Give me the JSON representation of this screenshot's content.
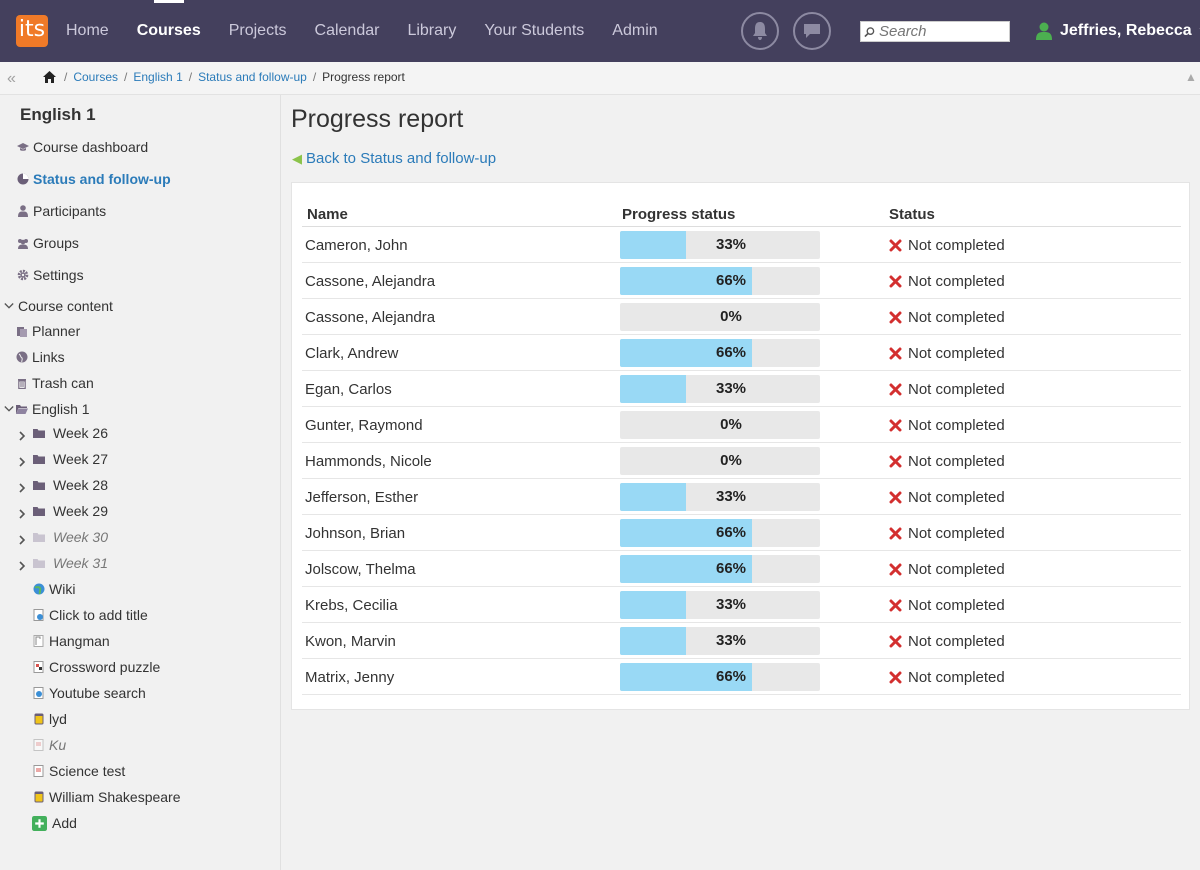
{
  "logo_text": "its",
  "nav": [
    "Home",
    "Courses",
    "Projects",
    "Calendar",
    "Library",
    "Your Students",
    "Admin"
  ],
  "nav_active": 1,
  "search": {
    "placeholder": "Search"
  },
  "user": {
    "name": "Jeffries, Rebecca"
  },
  "breadcrumb": [
    "Courses",
    "English 1",
    "Status and follow-up"
  ],
  "breadcrumb_current": "Progress report",
  "sidebar": {
    "course_title": "English 1",
    "main_items": [
      {
        "label": "Course dashboard",
        "icon": "graduation-cap-icon"
      },
      {
        "label": "Status and follow-up",
        "icon": "pie-chart-icon",
        "active": true
      },
      {
        "label": "Participants",
        "icon": "person-icon"
      },
      {
        "label": "Groups",
        "icon": "group-icon"
      },
      {
        "label": "Settings",
        "icon": "gear-icon"
      }
    ],
    "course_content_label": "Course content",
    "content_items": [
      {
        "label": "Planner",
        "icon": "planner-icon"
      },
      {
        "label": "Links",
        "icon": "globe-icon"
      },
      {
        "label": "Trash can",
        "icon": "trash-icon"
      }
    ],
    "folder_label": "English 1",
    "weeks": [
      {
        "label": "Week 26",
        "hidden": false
      },
      {
        "label": "Week 27",
        "hidden": false
      },
      {
        "label": "Week 28",
        "hidden": false
      },
      {
        "label": "Week 29",
        "hidden": false
      },
      {
        "label": "Week 30",
        "hidden": true
      },
      {
        "label": "Week 31",
        "hidden": true
      }
    ],
    "resources": [
      {
        "label": "Wiki",
        "icon": "wiki-icon",
        "hidden": false
      },
      {
        "label": "Click to add title",
        "icon": "page-icon",
        "hidden": false
      },
      {
        "label": "Hangman",
        "icon": "hangman-icon",
        "hidden": false
      },
      {
        "label": "Crossword puzzle",
        "icon": "crossword-icon",
        "hidden": false
      },
      {
        "label": "Youtube search",
        "icon": "youtube-icon",
        "hidden": false
      },
      {
        "label": "lyd",
        "icon": "audio-icon",
        "hidden": false
      },
      {
        "label": "Ku",
        "icon": "test-icon",
        "hidden": true
      },
      {
        "label": "Science test",
        "icon": "test-icon",
        "hidden": false
      },
      {
        "label": "William Shakespeare",
        "icon": "audio-icon",
        "hidden": false
      }
    ],
    "add_label": "Add"
  },
  "page_title": "Progress report",
  "back_link": "Back to Status and follow-up",
  "table": {
    "headers": [
      "Name",
      "Progress status",
      "Status"
    ],
    "rows": [
      {
        "name": "Cameron, John",
        "progress": 33,
        "status": "Not completed"
      },
      {
        "name": "Cassone, Alejandra",
        "progress": 66,
        "status": "Not completed"
      },
      {
        "name": "Cassone, Alejandra",
        "progress": 0,
        "status": "Not completed"
      },
      {
        "name": "Clark, Andrew",
        "progress": 66,
        "status": "Not completed"
      },
      {
        "name": "Egan, Carlos",
        "progress": 33,
        "status": "Not completed"
      },
      {
        "name": "Gunter, Raymond",
        "progress": 0,
        "status": "Not completed"
      },
      {
        "name": "Hammonds, Nicole",
        "progress": 0,
        "status": "Not completed"
      },
      {
        "name": "Jefferson, Esther",
        "progress": 33,
        "status": "Not completed"
      },
      {
        "name": "Johnson, Brian",
        "progress": 66,
        "status": "Not completed"
      },
      {
        "name": "Jolscow, Thelma",
        "progress": 66,
        "status": "Not completed"
      },
      {
        "name": "Krebs, Cecilia",
        "progress": 33,
        "status": "Not completed"
      },
      {
        "name": "Kwon, Marvin",
        "progress": 33,
        "status": "Not completed"
      },
      {
        "name": "Matrix, Jenny",
        "progress": 66,
        "status": "Not completed"
      }
    ]
  },
  "colors": {
    "topbar": "#44405d",
    "logo": "#f07a28",
    "link": "#2b7bb9",
    "progress_fill": "#99d9f5",
    "not_completed": "#d32f2f"
  }
}
